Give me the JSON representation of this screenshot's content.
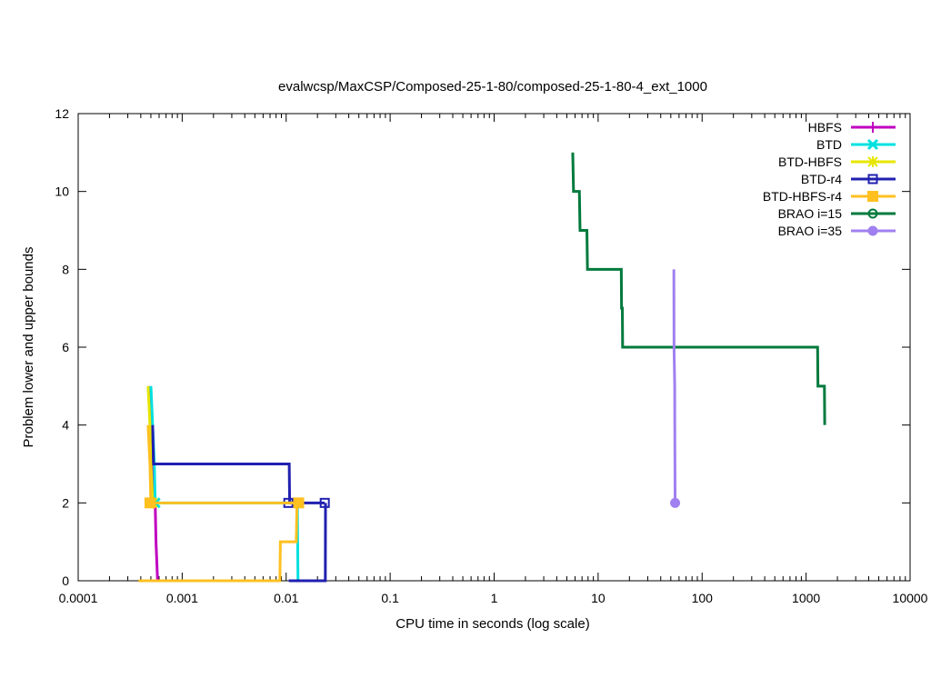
{
  "chart_data": {
    "type": "line",
    "title": "evalwcsp/MaxCSP/Composed-25-1-80/composed-25-1-80-4_ext_1000",
    "xlabel": "CPU time in seconds (log scale)",
    "ylabel": "Problem lower and upper bounds",
    "xscale": "log",
    "xlim": [
      0.0001,
      10000
    ],
    "ylim": [
      0,
      12
    ],
    "xticks": [
      0.0001,
      0.001,
      0.01,
      0.1,
      1,
      10,
      100,
      1000,
      10000
    ],
    "xtick_labels": [
      "0.0001",
      "0.001",
      "0.01",
      "0.1",
      "1",
      "10",
      "100",
      "1000",
      "10000"
    ],
    "yticks": [
      0,
      2,
      4,
      6,
      8,
      10,
      12
    ],
    "ytick_labels": [
      "0",
      "2",
      "4",
      "6",
      "8",
      "10",
      "12"
    ],
    "grid": false,
    "legend_position": "top-right",
    "series": [
      {
        "name": "HBFS",
        "color": "#c000c0",
        "marker": "plus",
        "upper": [
          [
            0.00048,
            5
          ],
          [
            0.0005,
            4
          ],
          [
            0.00052,
            3
          ],
          [
            0.00055,
            2
          ],
          [
            0.00056,
            1
          ],
          [
            0.00058,
            0
          ]
        ],
        "lower": [],
        "final": [
          0.00055,
          2
        ]
      },
      {
        "name": "BTD",
        "color": "#00e0e0",
        "marker": "x",
        "upper": [
          [
            0.0005,
            5
          ],
          [
            0.00052,
            4
          ],
          [
            0.00054,
            3
          ],
          [
            0.00055,
            2
          ],
          [
            0.0128,
            2
          ],
          [
            0.0129,
            1
          ],
          [
            0.013,
            0
          ]
        ],
        "lower": [],
        "final": [
          0.00055,
          2
        ]
      },
      {
        "name": "BTD-HBFS",
        "color": "#e6e600",
        "marker": "asterisk",
        "upper": [
          [
            0.00047,
            5
          ],
          [
            0.00049,
            4
          ],
          [
            0.0005,
            3
          ],
          [
            0.00052,
            2
          ]
        ],
        "lower": [],
        "final": [
          0.00052,
          2
        ]
      },
      {
        "name": "BTD-r4",
        "color": "#2020b0",
        "marker": "open-square",
        "upper": [
          [
            0.00052,
            4
          ],
          [
            0.00053,
            3
          ],
          [
            0.0107,
            3
          ],
          [
            0.0108,
            2
          ],
          [
            0.0235,
            2
          ]
        ],
        "lower": [
          [
            0.0106,
            0
          ],
          [
            0.0238,
            0
          ],
          [
            0.0239,
            2
          ]
        ],
        "final": [
          0.0105,
          2,
          0.0235,
          2
        ]
      },
      {
        "name": "BTD-HBFS-r4",
        "color": "#ffc020",
        "marker": "filled-square",
        "upper": [
          [
            0.00047,
            4
          ],
          [
            0.00049,
            3
          ],
          [
            0.0005,
            2
          ],
          [
            0.0132,
            2
          ]
        ],
        "lower": [
          [
            0.00038,
            0
          ],
          [
            0.0087,
            0
          ],
          [
            0.0088,
            1
          ],
          [
            0.0125,
            1
          ],
          [
            0.0127,
            2
          ]
        ],
        "final": [
          0.00049,
          2,
          0.0132,
          2
        ]
      },
      {
        "name": "BRAO i=15",
        "color": "#007a3d",
        "marker": "open-circle",
        "upper": [
          [
            5.7,
            11
          ],
          [
            5.8,
            10
          ],
          [
            6.6,
            10
          ],
          [
            6.7,
            9
          ],
          [
            7.8,
            9
          ],
          [
            7.9,
            8
          ],
          [
            16.7,
            8
          ],
          [
            16.8,
            7
          ],
          [
            17.1,
            7
          ],
          [
            17.2,
            6
          ],
          [
            1290,
            6
          ],
          [
            1300,
            5
          ],
          [
            1500,
            5
          ],
          [
            1510,
            4
          ]
        ],
        "lower": [],
        "final": null
      },
      {
        "name": "BRAO i=35",
        "color": "#a080f0",
        "marker": "filled-circle",
        "upper": [
          [
            53.5,
            8
          ],
          [
            53.7,
            6
          ],
          [
            54.5,
            5
          ],
          [
            54.6,
            4
          ],
          [
            55.0,
            2
          ]
        ],
        "lower": [],
        "final": [
          55.0,
          2
        ]
      }
    ]
  }
}
